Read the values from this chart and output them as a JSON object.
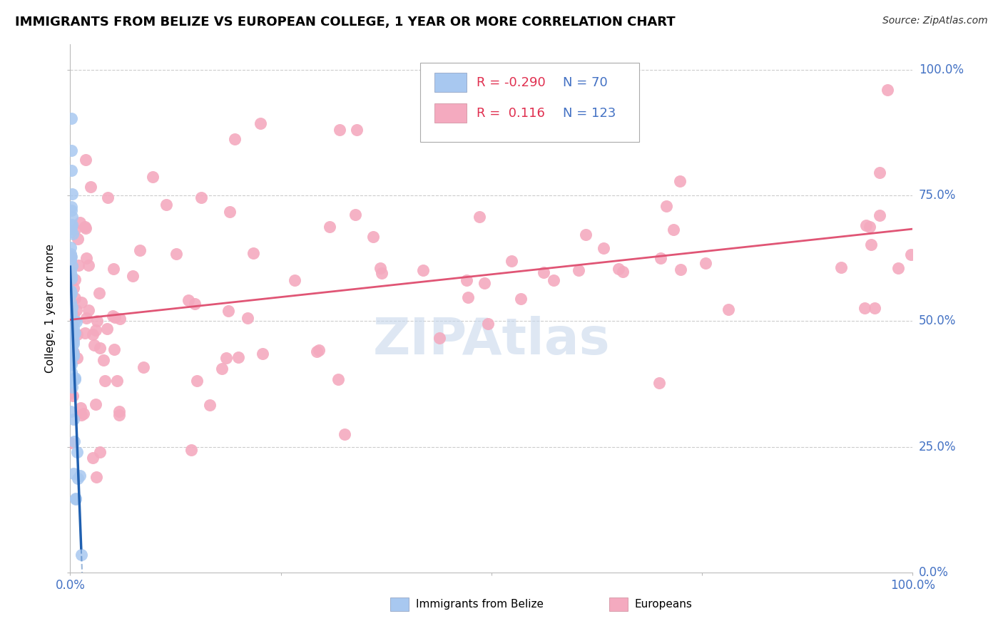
{
  "title": "IMMIGRANTS FROM BELIZE VS EUROPEAN COLLEGE, 1 YEAR OR MORE CORRELATION CHART",
  "source": "Source: ZipAtlas.com",
  "ylabel": "College, 1 year or more",
  "legend_R_blue": "-0.290",
  "legend_N_blue": "70",
  "legend_R_pink": "0.116",
  "legend_N_pink": "123",
  "blue_color": "#A8C8F0",
  "pink_color": "#F4AABF",
  "blue_line_color": "#2060B0",
  "pink_line_color": "#E05575",
  "grid_color": "#CCCCCC",
  "blue_seed": 77,
  "pink_seed": 88,
  "watermark_color": "#C8D8EC",
  "watermark_text": "ZIPAtlas",
  "right_label_color": "#4472C4",
  "title_fontsize": 13,
  "source_fontsize": 10,
  "axis_label_fontsize": 11,
  "tick_fontsize": 12,
  "legend_fontsize": 13
}
